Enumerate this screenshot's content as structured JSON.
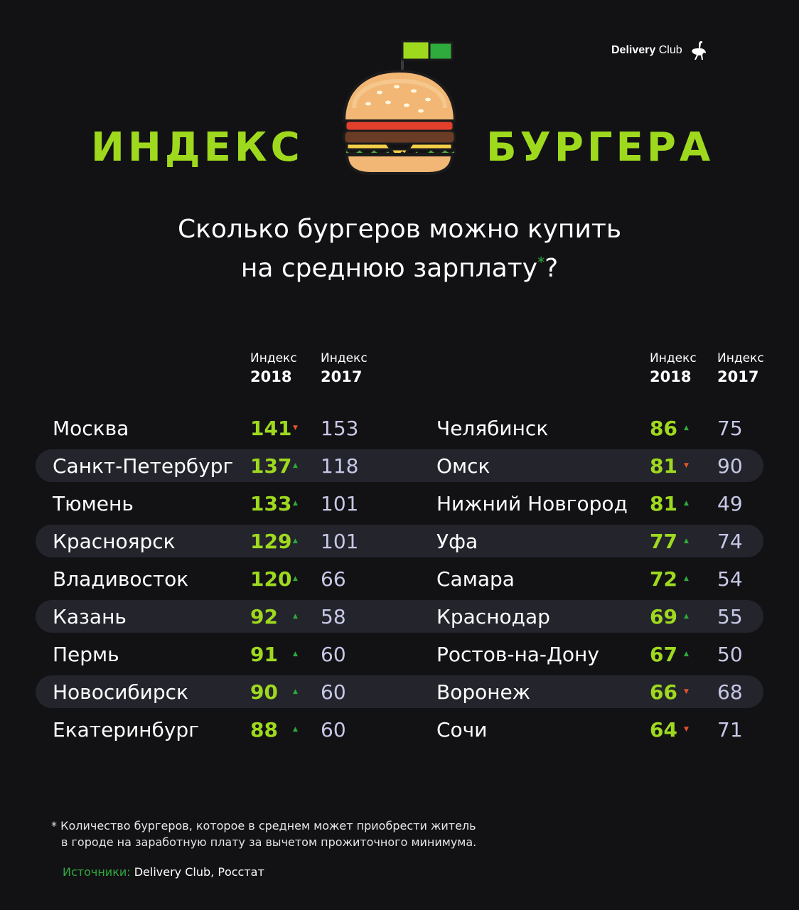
{
  "brand": {
    "name_bold": "Delivery",
    "name_light": "Club"
  },
  "title": {
    "left": "ИНДЕКС",
    "right": "БУРГЕРА"
  },
  "subtitle": {
    "line1": "Сколько бургеров можно купить",
    "line2": "на среднюю зарплату",
    "asterisk": "*",
    "question": "?"
  },
  "columns": {
    "left": {
      "h2018_small": "Индекс",
      "h2018_big": "2018",
      "h2017_small": "Индекс",
      "h2017_big": "2017"
    },
    "right": {
      "h2018_small": "Индекс",
      "h2018_big": "2018",
      "h2017_small": "Индекс",
      "h2017_big": "2017"
    }
  },
  "trend_glyphs": {
    "up": "▲",
    "down": "▼"
  },
  "colors": {
    "accent_green": "#9fd91e",
    "dark_green": "#2faa3c",
    "down_red": "#e2552a",
    "band": "#23242c",
    "background": "#121215"
  },
  "table_left": [
    {
      "city": "Москва",
      "v2018": "141",
      "trend": "down",
      "v2017": "153"
    },
    {
      "city": "Санкт-Петербург",
      "v2018": "137",
      "trend": "up",
      "v2017": "118"
    },
    {
      "city": "Тюмень",
      "v2018": "133",
      "trend": "up",
      "v2017": "101"
    },
    {
      "city": "Красноярск",
      "v2018": "129",
      "trend": "up",
      "v2017": "101"
    },
    {
      "city": "Владивосток",
      "v2018": "120",
      "trend": "up",
      "v2017": "66"
    },
    {
      "city": "Казань",
      "v2018": "92",
      "trend": "up",
      "v2017": "58"
    },
    {
      "city": "Пермь",
      "v2018": "91",
      "trend": "up",
      "v2017": "60"
    },
    {
      "city": "Новосибирск",
      "v2018": "90",
      "trend": "up",
      "v2017": "60"
    },
    {
      "city": "Екатеринбург",
      "v2018": "88",
      "trend": "up",
      "v2017": "60"
    }
  ],
  "table_right": [
    {
      "city": "Челябинск",
      "v2018": "86",
      "trend": "up",
      "v2017": "75"
    },
    {
      "city": "Омск",
      "v2018": "81",
      "trend": "down",
      "v2017": "90"
    },
    {
      "city": "Нижний Новгород",
      "v2018": "81",
      "trend": "up",
      "v2017": "49"
    },
    {
      "city": "Уфа",
      "v2018": "77",
      "trend": "up",
      "v2017": "74"
    },
    {
      "city": "Самара",
      "v2018": "72",
      "trend": "up",
      "v2017": "54"
    },
    {
      "city": "Краснодар",
      "v2018": "69",
      "trend": "up",
      "v2017": "55"
    },
    {
      "city": "Ростов-на-Дону",
      "v2018": "67",
      "trend": "up",
      "v2017": "50"
    },
    {
      "city": "Воронеж",
      "v2018": "66",
      "trend": "down",
      "v2017": "68"
    },
    {
      "city": "Сочи",
      "v2018": "64",
      "trend": "down",
      "v2017": "71"
    }
  ],
  "footnote": {
    "line1": "* Количество бургеров, которое в среднем может приобрести житель",
    "line2": "в городе на заработную плату за вычетом прожиточного минимума."
  },
  "sources": {
    "label": "Источники:",
    "text": "Delivery Club, Росстат"
  }
}
